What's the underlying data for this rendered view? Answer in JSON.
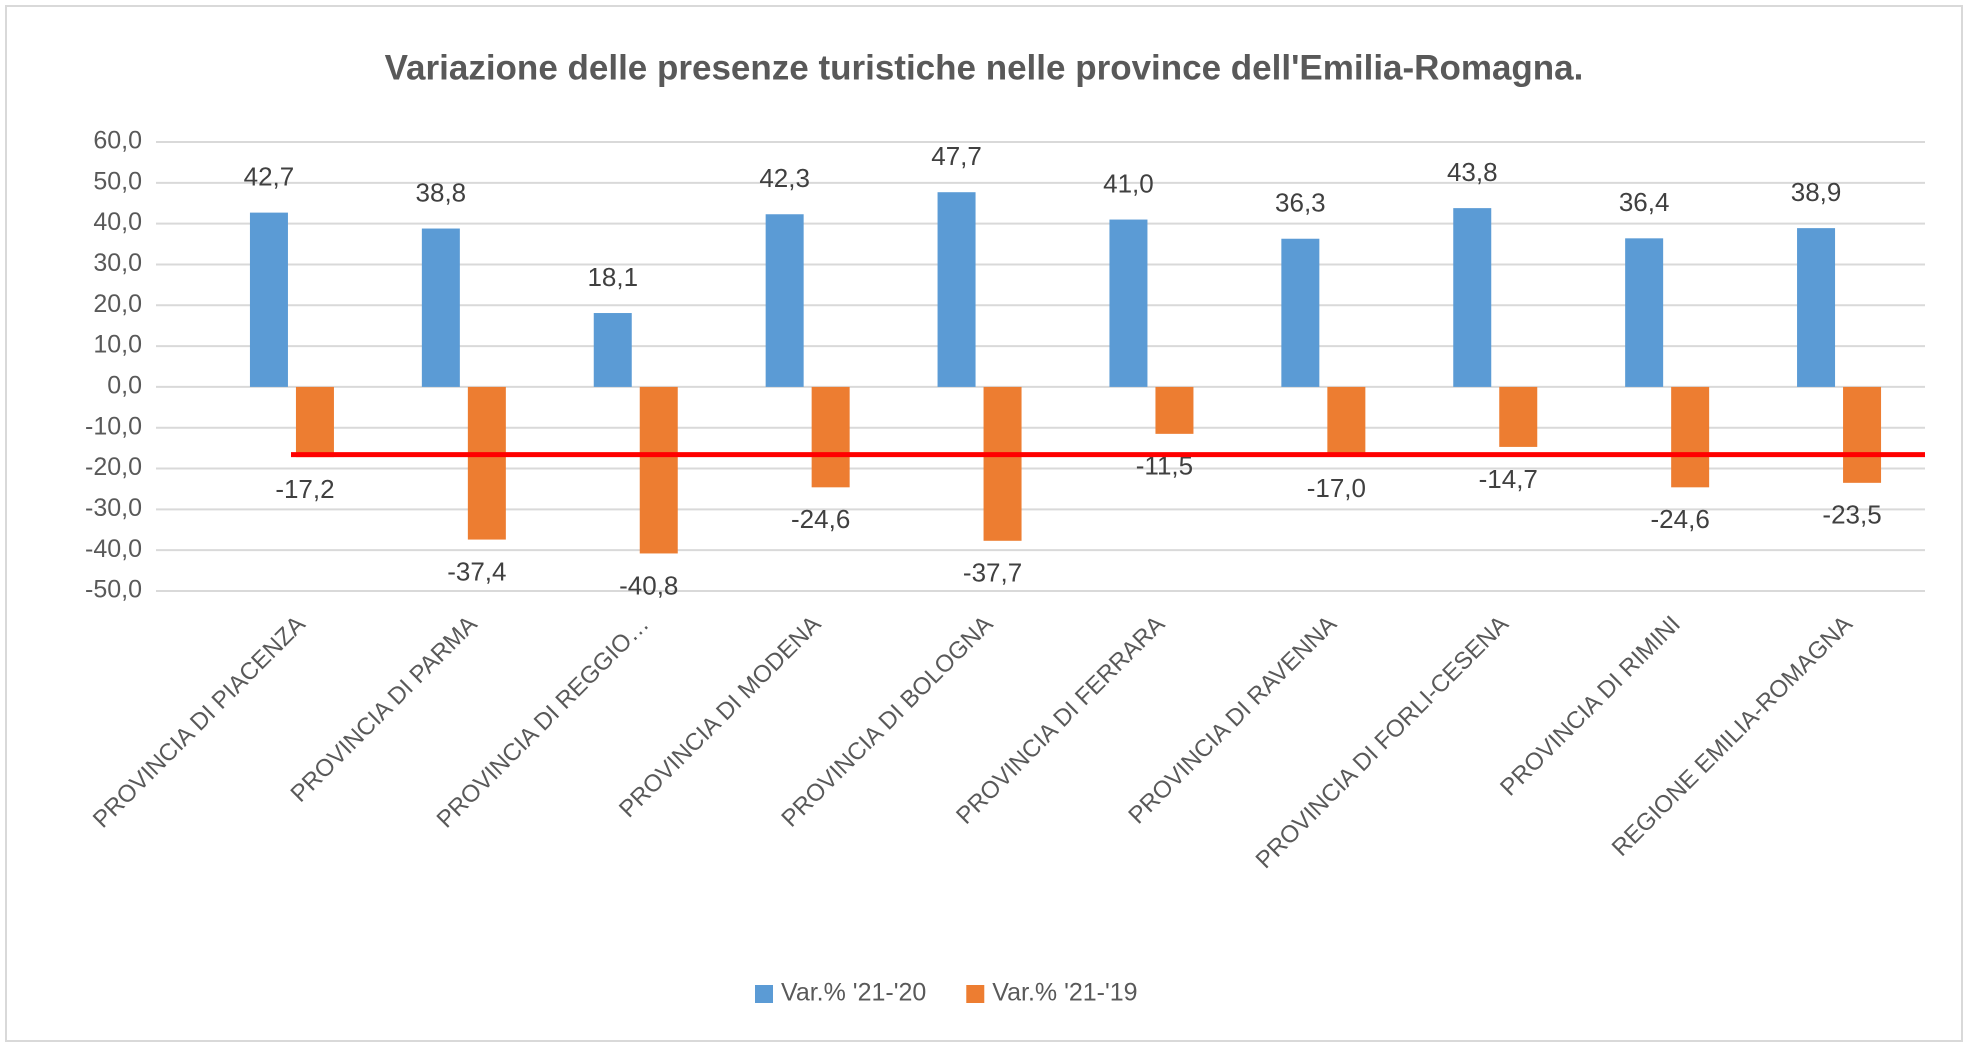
{
  "chart_data": {
    "type": "bar",
    "title": "Variazione delle presenze turistiche nelle province dell'Emilia-Romagna.",
    "categories": [
      "PROVINCIA DI PIACENZA",
      "PROVINCIA DI PARMA",
      "PROVINCIA DI REGGIO…",
      "PROVINCIA DI MODENA",
      "PROVINCIA DI BOLOGNA",
      "PROVINCIA DI FERRARA",
      "PROVINCIA DI RAVENNA",
      "PROVINCIA DI FORLI-CESENA",
      "PROVINCIA DI RIMINI",
      "REGIONE EMILIA-ROMAGNA"
    ],
    "series": [
      {
        "name": "Var.% '21-'20",
        "color": "#5b9bd5",
        "values": [
          42.7,
          38.8,
          18.1,
          42.3,
          47.7,
          41.0,
          36.3,
          43.8,
          36.4,
          38.9
        ],
        "value_labels": [
          "42,7",
          "38,8",
          "18,1",
          "42,3",
          "47,7",
          "41,0",
          "36,3",
          "43,8",
          "36,4",
          "38,9"
        ]
      },
      {
        "name": "Var.% '21-'19",
        "color": "#ed7d31",
        "values": [
          -17.2,
          -37.4,
          -40.8,
          -24.6,
          -37.7,
          -11.5,
          -17.0,
          -14.7,
          -24.6,
          -23.5
        ],
        "value_labels": [
          "-17,2",
          "-37,4",
          "-40,8",
          "-24,6",
          "-37,7",
          "-11,5",
          "-17,0",
          "-14,7",
          "-24,6",
          "-23,5"
        ]
      }
    ],
    "ylim": [
      -50,
      60
    ],
    "yticks": [
      {
        "value": -50,
        "label": "-50,0"
      },
      {
        "value": -40,
        "label": "-40,0"
      },
      {
        "value": -30,
        "label": "-30,0"
      },
      {
        "value": -20,
        "label": "-20,0"
      },
      {
        "value": -10,
        "label": "-10,0"
      },
      {
        "value": 0,
        "label": "0,0"
      },
      {
        "value": 10,
        "label": "10,0"
      },
      {
        "value": 20,
        "label": "20,0"
      },
      {
        "value": 30,
        "label": "30,0"
      },
      {
        "value": 40,
        "label": "40,0"
      },
      {
        "value": 50,
        "label": "50,0"
      },
      {
        "value": 60,
        "label": "60,0"
      }
    ],
    "grid": true,
    "legend": "bottom",
    "reference_line": {
      "value": -16.6,
      "color": "#ff0000"
    }
  }
}
